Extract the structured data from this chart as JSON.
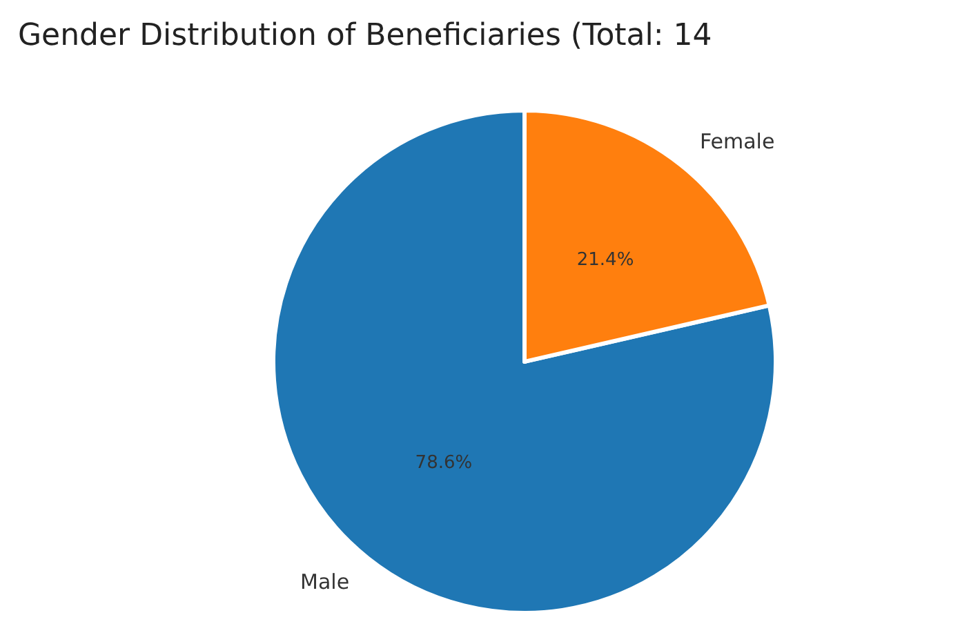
{
  "chart_data": {
    "type": "pie",
    "title": "Gender Distribution of Beneficiaries (Total: 14",
    "categories": [
      "Male",
      "Female"
    ],
    "values": [
      78.6,
      21.4
    ],
    "colors": [
      "#1f77b4",
      "#ff7f0e"
    ],
    "value_labels": [
      "78.6%",
      "21.4%"
    ]
  }
}
